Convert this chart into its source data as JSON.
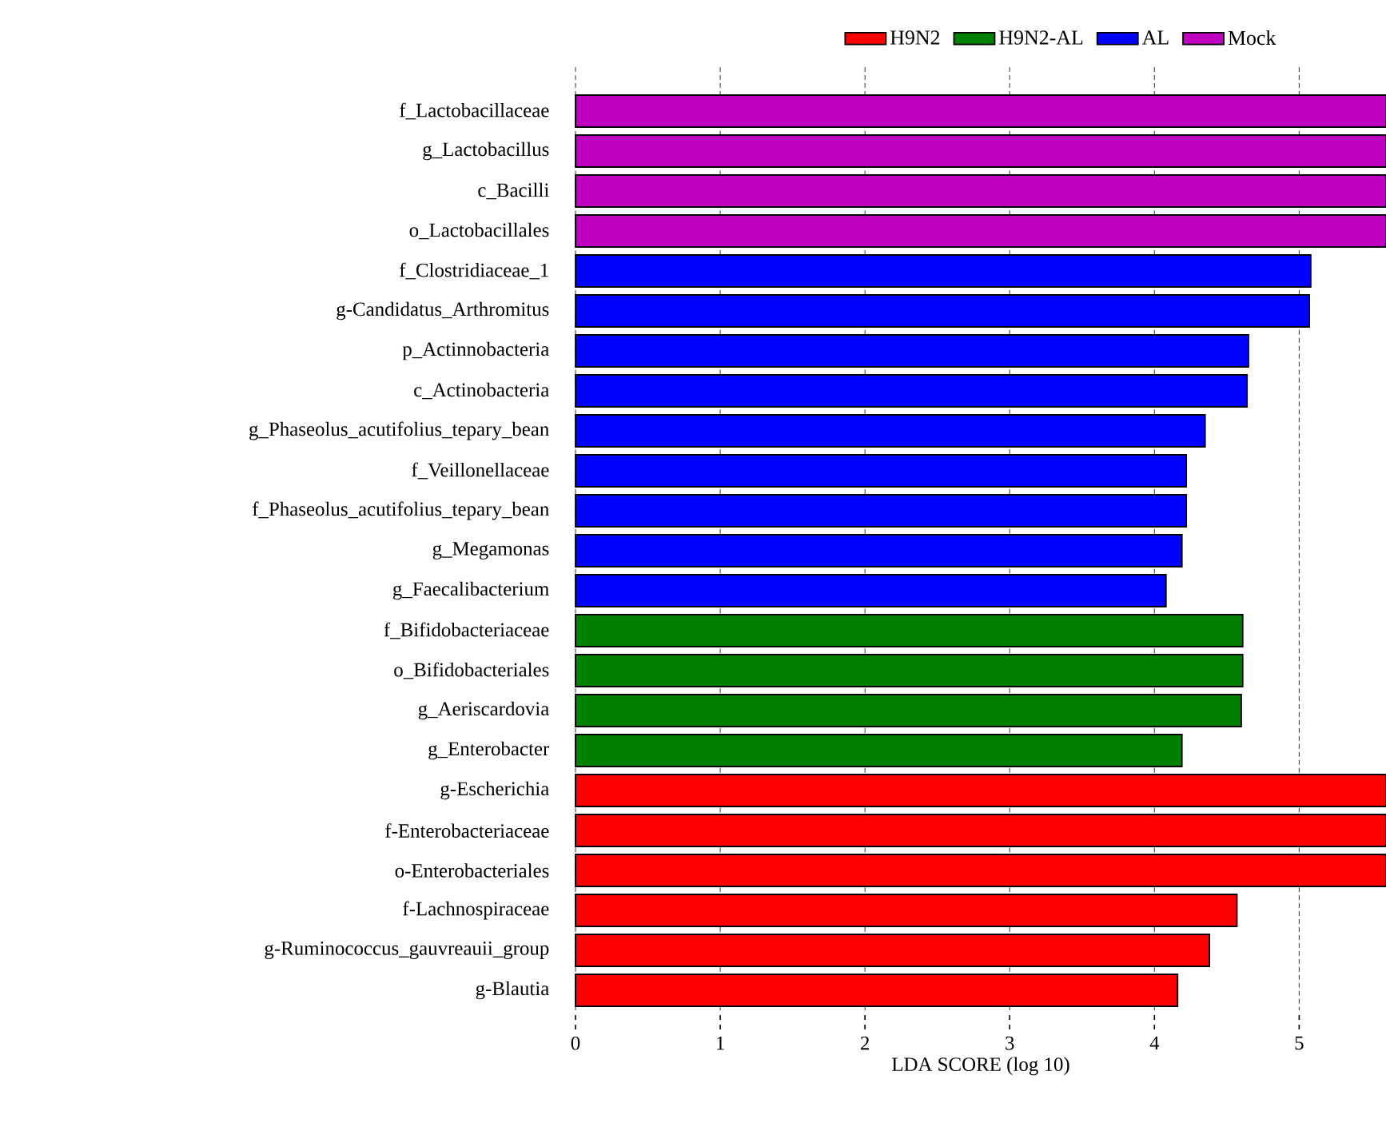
{
  "chart_data": {
    "type": "bar",
    "orientation": "horizontal",
    "xlabel": "LDA SCORE (log 10)",
    "categories": [
      "f_Lactobacillaceae",
      "g_Lactobacillus",
      "c_Bacilli",
      "o_Lactobacillales",
      "f_Clostridiaceae_1",
      "g-Candidatus_Arthromitus",
      "p_Actinnobacteria",
      "c_Actinobacteria",
      "g_Phaseolus_acutifolius_tepary_bean",
      "f_Veillonellaceae",
      "f_Phaseolus_acutifolius_tepary_bean",
      "g_Megamonas",
      "g_Faecalibacterium",
      "f_Bifidobacteriaceae",
      "o_Bifidobacteriales",
      "g_Aeriscardovia",
      "g_Enterobacter",
      "g-Escherichia",
      "f-Enterobacteriaceae",
      "o-Enterobacteriales",
      "f-Lachnospiraceae",
      "g-Ruminococcus_gauvreauii_group",
      "g-Blautia"
    ],
    "series": [
      {
        "name": "H9N2",
        "color": "#ff0000",
        "values": [
          null,
          null,
          null,
          null,
          null,
          null,
          null,
          null,
          null,
          null,
          null,
          null,
          null,
          null,
          null,
          null,
          null,
          5.6,
          5.6,
          5.6,
          4.57,
          4.38,
          4.16
        ]
      },
      {
        "name": "H9N2-AL",
        "color": "#008000",
        "values": [
          null,
          null,
          null,
          null,
          null,
          null,
          null,
          null,
          null,
          null,
          null,
          null,
          null,
          4.61,
          4.61,
          4.6,
          4.19,
          null,
          null,
          null,
          null,
          null,
          null
        ]
      },
      {
        "name": "AL",
        "color": "#0000ff",
        "values": [
          null,
          null,
          null,
          null,
          5.08,
          5.07,
          4.65,
          4.64,
          4.35,
          4.22,
          4.22,
          4.19,
          4.08,
          null,
          null,
          null,
          null,
          null,
          null,
          null,
          null,
          null,
          null
        ]
      },
      {
        "name": "Mock",
        "color": "#c000c0",
        "values": [
          5.6,
          5.6,
          5.6,
          5.6,
          null,
          null,
          null,
          null,
          null,
          null,
          null,
          null,
          null,
          null,
          null,
          null,
          null,
          null,
          null,
          null,
          null,
          null,
          null
        ]
      }
    ],
    "xlim": [
      0,
      5.6
    ],
    "xticks": [
      0,
      1,
      2,
      3,
      4,
      5
    ],
    "grid": "x",
    "legend": "top"
  }
}
